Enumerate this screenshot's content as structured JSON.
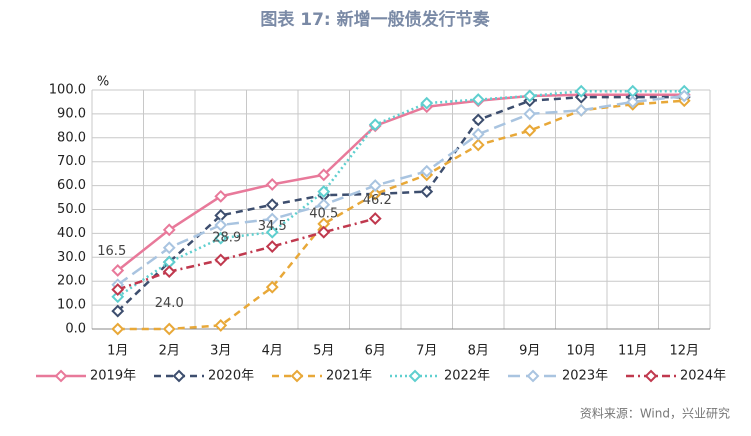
{
  "chart_data": {
    "type": "line",
    "title": "图表 17: 新增一般债发行节奏",
    "y_unit": "%",
    "source": "资料来源：Wind，兴业研究",
    "categories": [
      "1月",
      "2月",
      "3月",
      "4月",
      "5月",
      "6月",
      "7月",
      "8月",
      "9月",
      "10月",
      "11月",
      "12月"
    ],
    "ylim": [
      0,
      100
    ],
    "yticks": [
      {
        "value": 0,
        "label": "0.0"
      },
      {
        "value": 10,
        "label": "10.0"
      },
      {
        "value": 20,
        "label": "20.0"
      },
      {
        "value": 30,
        "label": "30.0"
      },
      {
        "value": 40,
        "label": "40.0"
      },
      {
        "value": 50,
        "label": "50.0"
      },
      {
        "value": 60,
        "label": "60.0"
      },
      {
        "value": 70,
        "label": "70.0"
      },
      {
        "value": 80,
        "label": "80.0"
      },
      {
        "value": 90,
        "label": "90.0"
      },
      {
        "value": 100,
        "label": "100.0"
      }
    ],
    "grid": true,
    "legend": "bottom",
    "series": [
      {
        "name": "2019年",
        "color": "#e8799a",
        "dash": "solid",
        "values": [
          24.5,
          41.5,
          55.5,
          60.5,
          64.5,
          85,
          93,
          95.5,
          97.5,
          98,
          98,
          98
        ]
      },
      {
        "name": "2020年",
        "color": "#3d4e6e",
        "dash": "dashed",
        "values": [
          7.5,
          28,
          47.5,
          52,
          56,
          56.5,
          57.5,
          87.5,
          95.5,
          97,
          97,
          97
        ]
      },
      {
        "name": "2021年",
        "color": "#e8a838",
        "dash": "dashed",
        "values": [
          0,
          0,
          1.5,
          17.5,
          44,
          56.5,
          64.5,
          77,
          83,
          91.5,
          94,
          95.5
        ]
      },
      {
        "name": "2022年",
        "color": "#5fcfcf",
        "dash": "dotted",
        "values": [
          13.5,
          28,
          38,
          40.5,
          57.5,
          85.5,
          94.5,
          96,
          97.5,
          99.5,
          99.5,
          99.5
        ]
      },
      {
        "name": "2023年",
        "color": "#a9c4e0",
        "dash": "longdash",
        "values": [
          18.5,
          34,
          43.5,
          46,
          52,
          60,
          66,
          81.5,
          90,
          91.5,
          95,
          97.5
        ]
      },
      {
        "name": "2024年",
        "color": "#c0394e",
        "dash": "dashdot",
        "values": [
          16.5,
          24.0,
          28.9,
          34.5,
          40.5,
          46.2,
          null,
          null,
          null,
          null,
          null,
          null
        ],
        "value_labels": [
          "16.5",
          "24.0",
          "28.9",
          "34.5",
          "40.5",
          "46.2",
          null,
          null,
          null,
          null,
          null,
          null
        ]
      }
    ]
  }
}
